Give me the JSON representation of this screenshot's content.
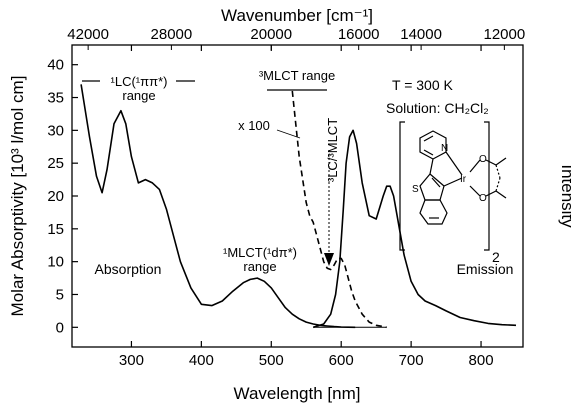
{
  "chart_data": {
    "type": "line",
    "xlabel": "Wavelength [nm]",
    "ylabel": "Molar Absorptivity [10³ l/mol cm]",
    "ylabel2": "Intensity",
    "top_label": "Wavenumber [cm⁻¹]",
    "xlim": [
      215,
      860
    ],
    "ylim": [
      -3,
      43
    ],
    "xticks": [
      300,
      400,
      500,
      600,
      700,
      800
    ],
    "yticks": [
      0,
      5,
      10,
      15,
      20,
      25,
      30,
      35,
      40
    ],
    "top_ticks": [
      42000,
      28000,
      20000,
      16000,
      14000,
      12000
    ],
    "annotations": {
      "conditions_1": "T = 300 K",
      "conditions_2": "Solution: CH₂Cl₂",
      "lc_range_line1": "¹LC(¹ππ*)",
      "lc_range_line2": "range",
      "mlct3_range": "³MLCT range",
      "scale_factor": "x 100",
      "lc_mlct": "³LC/³MLCT",
      "mlct1_line1": "¹MLCT(¹dπ*)",
      "mlct1_line2": "range",
      "absorption": "Absorption",
      "emission": "Emission",
      "subscript_2": "2",
      "ir_label": "Ir",
      "s_label": "S",
      "n_label": "N",
      "o_label": "O"
    },
    "series": [
      {
        "role": "absorption",
        "style": "solid",
        "x": [
          228,
          240,
          250,
          258,
          265,
          275,
          285,
          292,
          300,
          310,
          320,
          330,
          340,
          350,
          360,
          370,
          385,
          400,
          415,
          430,
          445,
          460,
          470,
          480,
          490,
          500,
          510,
          520,
          530,
          540,
          550,
          560,
          570,
          580,
          590,
          600,
          610,
          620
        ],
        "y": [
          37,
          29,
          23,
          20.5,
          24,
          31,
          33,
          31,
          26,
          22,
          22.5,
          22,
          21,
          18,
          14,
          10,
          6,
          3.5,
          3.3,
          4,
          5.5,
          6.8,
          7.3,
          7.5,
          7,
          6,
          4.5,
          3,
          2,
          1.3,
          0.8,
          0.5,
          0.3,
          0.2,
          0.1,
          0.05,
          0.02,
          0
        ]
      },
      {
        "role": "absorption_x100",
        "style": "dashed",
        "x": [
          530,
          540,
          550,
          555,
          560,
          565,
          570,
          575,
          580,
          585,
          590,
          595,
          600,
          605,
          610,
          615,
          620,
          630,
          640,
          650,
          660,
          665
        ],
        "y": [
          36,
          26,
          19,
          17,
          16,
          14,
          12,
          10,
          9,
          8.8,
          9.5,
          10.5,
          10.5,
          9.5,
          7.5,
          5.5,
          4,
          2,
          0.8,
          0.3,
          0.1,
          0
        ]
      },
      {
        "role": "emission",
        "style": "solid",
        "x": [
          560,
          575,
          585,
          592,
          598,
          603,
          607,
          612,
          617,
          622,
          630,
          640,
          650,
          660,
          665,
          670,
          675,
          680,
          690,
          700,
          710,
          720,
          735,
          750,
          770,
          790,
          810,
          830,
          850
        ],
        "y": [
          0,
          0.5,
          2,
          5,
          10,
          18,
          25,
          29,
          30,
          28,
          22,
          17,
          16.5,
          20,
          21.5,
          21.5,
          20,
          17,
          11,
          7,
          5,
          4,
          3.3,
          2.5,
          1.5,
          1,
          0.6,
          0.4,
          0.3
        ]
      }
    ]
  }
}
